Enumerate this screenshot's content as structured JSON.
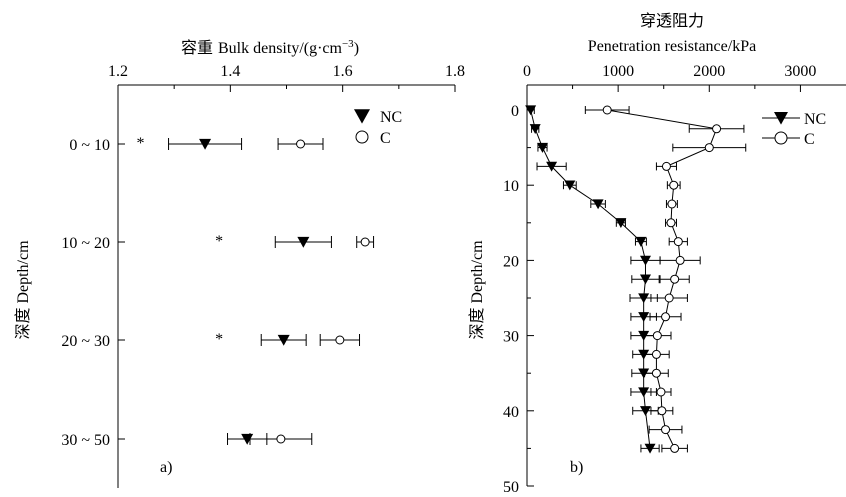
{
  "chart_data": [
    {
      "type": "scatter",
      "panel_label": "a)",
      "title": "容重 Bulk density/(g·cm⁻³)",
      "xlabel_cn": "容重",
      "xlabel_en": "Bulk density/(g·cm",
      "xlabel_exp": "−3",
      "xlabel_close": ")",
      "ylabel": "深度 Depth/cm",
      "xlim": [
        1.2,
        1.8
      ],
      "xticks": [
        "1.2",
        "1.4",
        "1.6",
        "1.8"
      ],
      "xtick_values": [
        1.2,
        1.4,
        1.6,
        1.8
      ],
      "categories": [
        "0 ~ 10",
        "10 ~ 20",
        "20 ~ 30",
        "30 ~ 50"
      ],
      "significance_marker": "*",
      "significance_categories": [
        0,
        1,
        2
      ],
      "series": [
        {
          "name": "NC",
          "marker": "filled-down-triangle",
          "values": [
            1.355,
            1.53,
            1.495,
            1.43
          ],
          "errors": [
            0.065,
            0.05,
            0.04,
            0.035
          ]
        },
        {
          "name": "C",
          "marker": "open-circle",
          "values": [
            1.525,
            1.64,
            1.595,
            1.49
          ],
          "errors": [
            0.04,
            0.015,
            0.035,
            0.055
          ]
        }
      ],
      "significance_x": [
        1.24,
        1.38,
        1.38
      ],
      "legend_position": "top-right"
    },
    {
      "type": "line",
      "panel_label": "b)",
      "title_cn": "穿透阻力",
      "title_en": "Penetration resistance/kPa",
      "ylabel": "深度 Depth/cm",
      "xlim": [
        0,
        3500
      ],
      "ylim": [
        0,
        50
      ],
      "xticks": [
        "0",
        "1000",
        "2000",
        "3000"
      ],
      "xtick_values": [
        0,
        1000,
        2000,
        3000
      ],
      "yticks": [
        "0",
        "10",
        "20",
        "30",
        "40",
        "50"
      ],
      "ytick_values": [
        0,
        10,
        20,
        30,
        40,
        50
      ],
      "series": [
        {
          "name": "NC",
          "marker": "filled-down-triangle",
          "x": [
            40,
            90,
            170,
            270,
            470,
            780,
            1030,
            1250,
            1300,
            1300,
            1280,
            1280,
            1280,
            1280,
            1280,
            1280,
            1300,
            1350
          ],
          "y": [
            0,
            2.5,
            5,
            7.5,
            10,
            12.5,
            15,
            17.5,
            20,
            22.5,
            25,
            27.5,
            30,
            32.5,
            35,
            37.5,
            40,
            45
          ],
          "errors": [
            40,
            40,
            50,
            160,
            70,
            80,
            50,
            60,
            160,
            150,
            150,
            140,
            140,
            120,
            130,
            140,
            140,
            100
          ]
        },
        {
          "name": "C",
          "marker": "open-circle",
          "x": [
            880,
            2080,
            2000,
            1530,
            1610,
            1590,
            1580,
            1660,
            1680,
            1620,
            1560,
            1520,
            1430,
            1420,
            1420,
            1470,
            1480,
            1520,
            1620
          ],
          "y": [
            0,
            2.5,
            5,
            7.5,
            10,
            12.5,
            15,
            17.5,
            20,
            22.5,
            25,
            27.5,
            30,
            32.5,
            35,
            37.5,
            40,
            42.5,
            45
          ],
          "errors": [
            240,
            300,
            400,
            110,
            70,
            60,
            60,
            100,
            220,
            160,
            200,
            170,
            150,
            140,
            130,
            110,
            120,
            180,
            140
          ]
        }
      ],
      "legend_position": "top-right"
    }
  ]
}
